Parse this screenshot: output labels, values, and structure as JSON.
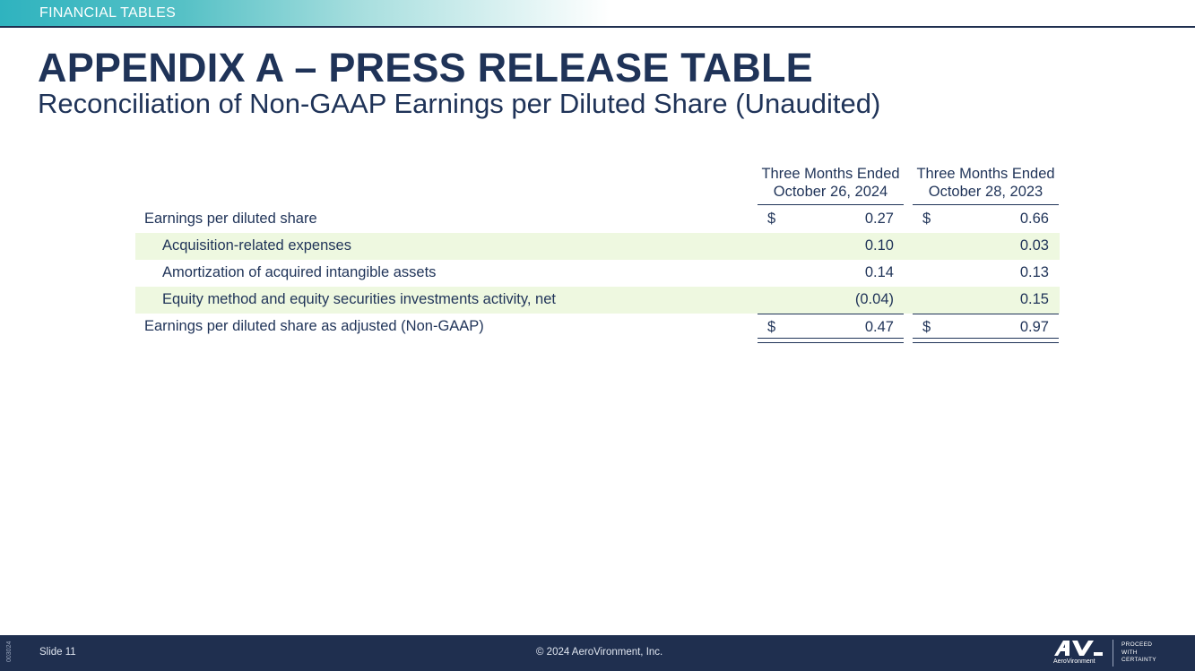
{
  "section": {
    "label": "FINANCIAL TABLES"
  },
  "title": "APPENDIX A – PRESS RELEASE TABLE",
  "subtitle": "Reconciliation of Non-GAAP Earnings per Diluted Share (Unaudited)",
  "table": {
    "columns": [
      {
        "line1": "Three Months Ended",
        "line2": "October 26, 2024"
      },
      {
        "line1": "Three Months Ended",
        "line2": "October 28, 2023"
      }
    ],
    "rows": [
      {
        "label": "Earnings per diluted share",
        "indent": 0,
        "shaded": false,
        "currency": "$",
        "values": [
          "0.27",
          "0.66"
        ]
      },
      {
        "label": "Acquisition-related expenses",
        "indent": 1,
        "shaded": true,
        "currency": "",
        "values": [
          "0.10",
          "0.03"
        ]
      },
      {
        "label": "Amortization of acquired intangible assets",
        "indent": 1,
        "shaded": false,
        "currency": "",
        "values": [
          "0.14",
          "0.13"
        ]
      },
      {
        "label": "Equity method and equity securities investments activity, net",
        "indent": 1,
        "shaded": true,
        "currency": "",
        "values": [
          "(0.04)",
          "0.15"
        ]
      },
      {
        "label": "Earnings per diluted share as adjusted (Non-GAAP)",
        "indent": 0,
        "shaded": false,
        "currency": "$",
        "values": [
          "0.47",
          "0.97"
        ]
      }
    ]
  },
  "footer": {
    "code": "003024",
    "slide": "Slide 11",
    "copyright": "© 2024 AeroVironment, Inc.",
    "logo_mark": "AV",
    "logo_word": "AeroVironment",
    "tagline": [
      "PROCEED",
      "WITH",
      "CERTAINTY"
    ]
  },
  "colors": {
    "navy": "#1f2f4f",
    "title": "#1f3358",
    "teal": "#2fb3bf",
    "row_shade": "#eef8e0"
  }
}
